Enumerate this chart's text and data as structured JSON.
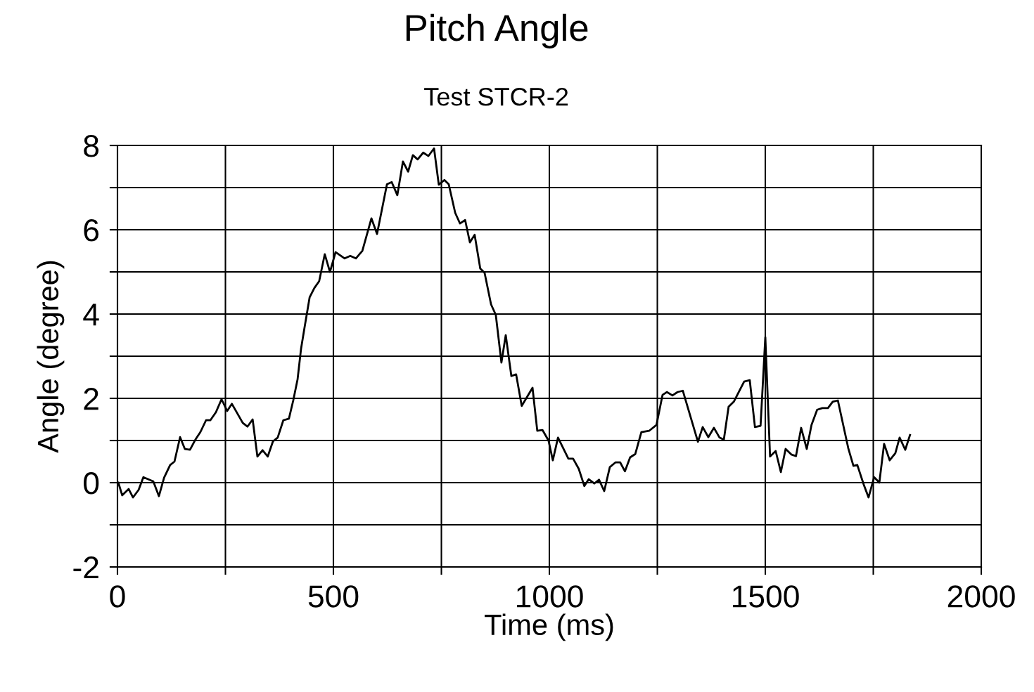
{
  "chart_data": {
    "type": "line",
    "title": "Pitch Angle",
    "subtitle": "Test STCR-2",
    "xlabel": "Time (ms)",
    "ylabel": "Angle (degree)",
    "x": [
      2,
      11,
      26,
      36,
      49,
      60,
      83,
      96,
      108,
      122,
      132,
      145,
      156,
      168,
      181,
      192,
      205,
      215,
      228,
      241,
      254,
      265,
      290,
      301,
      313,
      324,
      336,
      348,
      360,
      371,
      384,
      397,
      407,
      417,
      425,
      433,
      445,
      456,
      467,
      480,
      492,
      505,
      526,
      539,
      552,
      567,
      588,
      601,
      624,
      635,
      648,
      661,
      673,
      684,
      695,
      708,
      720,
      733,
      744,
      757,
      767,
      782,
      793,
      805,
      816,
      827,
      840,
      850,
      865,
      876,
      889,
      899,
      912,
      923,
      936,
      961,
      972,
      984,
      998,
      1008,
      1020,
      1044,
      1055,
      1068,
      1081,
      1091,
      1104,
      1115,
      1127,
      1140,
      1153,
      1164,
      1175,
      1187,
      1199,
      1213,
      1231,
      1248,
      1262,
      1272,
      1285,
      1297,
      1309,
      1344,
      1355,
      1368,
      1381,
      1394,
      1404,
      1415,
      1427,
      1451,
      1464,
      1476,
      1489,
      1500,
      1511,
      1524,
      1536,
      1547,
      1560,
      1571,
      1583,
      1596,
      1607,
      1620,
      1632,
      1645,
      1656,
      1668,
      1692,
      1704,
      1713,
      1728,
      1739,
      1752,
      1764,
      1775,
      1788,
      1801,
      1811,
      1824,
      1835
    ],
    "series": [
      {
        "color": "#000000",
        "values": [
          0,
          -0.3,
          -0.15,
          -0.35,
          -0.17,
          0.13,
          0.03,
          -0.32,
          0.12,
          0.42,
          0.5,
          1.08,
          0.8,
          0.78,
          1.03,
          1.2,
          1.48,
          1.48,
          1.67,
          1.98,
          1.7,
          1.87,
          1.42,
          1.33,
          1.5,
          0.62,
          0.77,
          0.62,
          0.98,
          1.07,
          1.48,
          1.52,
          1.95,
          2.45,
          3.17,
          3.67,
          4.4,
          4.62,
          4.78,
          5.42,
          5.0,
          5.47,
          5.32,
          5.38,
          5.32,
          5.5,
          6.27,
          5.9,
          7.08,
          7.13,
          6.82,
          7.62,
          7.38,
          7.77,
          7.67,
          7.83,
          7.75,
          7.93,
          7.07,
          7.18,
          7.08,
          6.4,
          6.15,
          6.23,
          5.7,
          5.88,
          5.08,
          4.98,
          4.23,
          3.98,
          2.85,
          3.5,
          2.53,
          2.57,
          1.82,
          2.25,
          1.23,
          1.25,
          1.0,
          0.53,
          1.07,
          0.57,
          0.57,
          0.33,
          -0.08,
          0.08,
          -0.02,
          0.07,
          -0.2,
          0.37,
          0.48,
          0.48,
          0.27,
          0.6,
          0.68,
          1.2,
          1.23,
          1.37,
          2.08,
          2.15,
          2.07,
          2.15,
          2.18,
          0.97,
          1.32,
          1.08,
          1.3,
          1.07,
          1.02,
          1.8,
          1.92,
          2.4,
          2.43,
          1.32,
          1.35,
          3.45,
          0.62,
          0.75,
          0.25,
          0.8,
          0.67,
          0.63,
          1.3,
          0.8,
          1.37,
          1.73,
          1.77,
          1.77,
          1.92,
          1.95,
          0.82,
          0.4,
          0.42,
          -0.05,
          -0.35,
          0.13,
          0,
          0.92,
          0.53,
          0.7,
          1.07,
          0.78,
          1.13
        ]
      }
    ],
    "xlim": [
      0,
      2000
    ],
    "xticks": [
      0,
      {
        "value": 250,
        "label": null
      },
      500,
      {
        "value": 750,
        "label": null
      },
      1000,
      {
        "value": 1250,
        "label": null
      },
      1500,
      {
        "value": 1750,
        "label": null
      },
      2000
    ],
    "ylim": [
      -2,
      8
    ],
    "yticks": [
      -2,
      {
        "value": -1,
        "label": null
      },
      0,
      {
        "value": 1,
        "label": null
      },
      2,
      {
        "value": 3,
        "label": null
      },
      4,
      {
        "value": 5,
        "label": null
      },
      6,
      {
        "value": 7,
        "label": null
      },
      8
    ],
    "grid": true,
    "marker": "none",
    "line_style": "solid"
  }
}
